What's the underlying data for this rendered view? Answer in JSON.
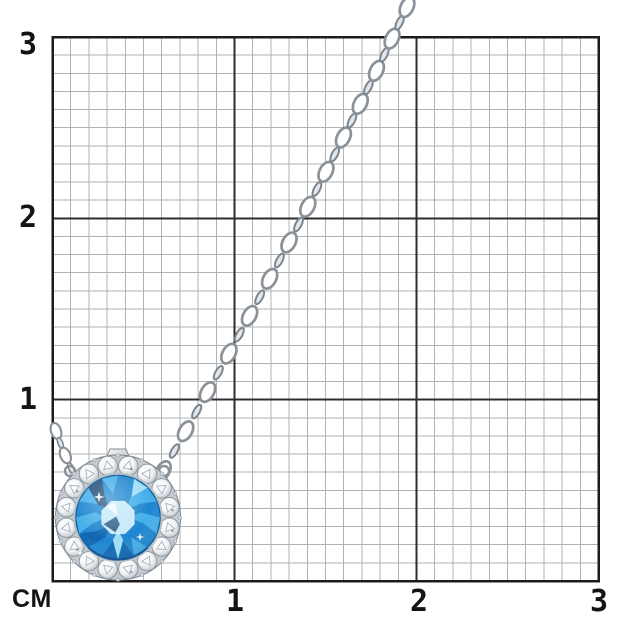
{
  "ruler": {
    "unit_label": "CM",
    "y_labels": [
      "3",
      "2",
      "1"
    ],
    "x_labels": [
      "1",
      "2",
      "3"
    ],
    "units": 3,
    "minor_divisions_per_unit": 10
  },
  "grid_colors": {
    "background": "#ffffff",
    "minor_line": "#b1b4b6",
    "major_line": "#2d2d2d",
    "border": "#1c1c1c",
    "label": "#141414"
  },
  "jewelry": {
    "item": "blue-topaz-diamond-halo-pendant-necklace",
    "halo_stone_count": 16,
    "gem": {
      "base": "#1e86d0",
      "mid": "#43afe9",
      "light": "#c4e9fa",
      "pale": "#9edef6",
      "deep": "#0f66b0",
      "dark": "#1d4a74"
    },
    "metal": {
      "light": "#f7f9fa",
      "mid": "#ccd2d8",
      "dark": "#8a9199",
      "edge": "#7d858d"
    }
  }
}
